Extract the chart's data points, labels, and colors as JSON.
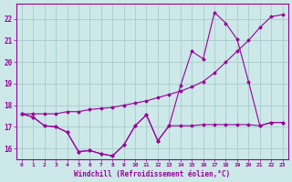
{
  "background_color": "#cce8e8",
  "grid_color": "#aacccc",
  "line_color": "#990099",
  "xlabel": "Windchill (Refroidissement éolien,°C)",
  "xlim": [
    -0.5,
    23.5
  ],
  "ylim": [
    15.5,
    22.7
  ],
  "yticks": [
    16,
    17,
    18,
    19,
    20,
    21,
    22
  ],
  "xticks": [
    0,
    1,
    2,
    3,
    4,
    5,
    6,
    7,
    8,
    9,
    10,
    11,
    12,
    13,
    14,
    15,
    16,
    17,
    18,
    19,
    20,
    21,
    22,
    23
  ],
  "x_hours": [
    0,
    1,
    2,
    3,
    4,
    5,
    6,
    7,
    8,
    9,
    10,
    11,
    12,
    13,
    14,
    15,
    16,
    17,
    18,
    19,
    20,
    21,
    22,
    23
  ],
  "line1_y": [
    17.6,
    17.45,
    17.05,
    17.0,
    16.75,
    15.85,
    15.9,
    15.75,
    15.65,
    16.15,
    17.05,
    17.55,
    16.35,
    17.05,
    17.05,
    17.05,
    17.1,
    17.1,
    17.1,
    17.1,
    17.1,
    17.05,
    17.2,
    17.2
  ],
  "line2_y": [
    17.6,
    17.45,
    17.05,
    17.0,
    16.75,
    15.85,
    15.9,
    15.75,
    15.65,
    16.15,
    17.05,
    17.55,
    16.35,
    17.05,
    18.9,
    20.5,
    20.15,
    22.3,
    21.8,
    21.05,
    19.1,
    17.05,
    17.2,
    17.2
  ],
  "line3_y": [
    17.6,
    17.6,
    17.6,
    17.6,
    17.7,
    17.7,
    17.8,
    17.85,
    17.9,
    18.0,
    18.1,
    18.2,
    18.35,
    18.5,
    18.65,
    18.85,
    19.1,
    19.5,
    20.0,
    20.5,
    21.0,
    21.6,
    22.1,
    22.2
  ]
}
